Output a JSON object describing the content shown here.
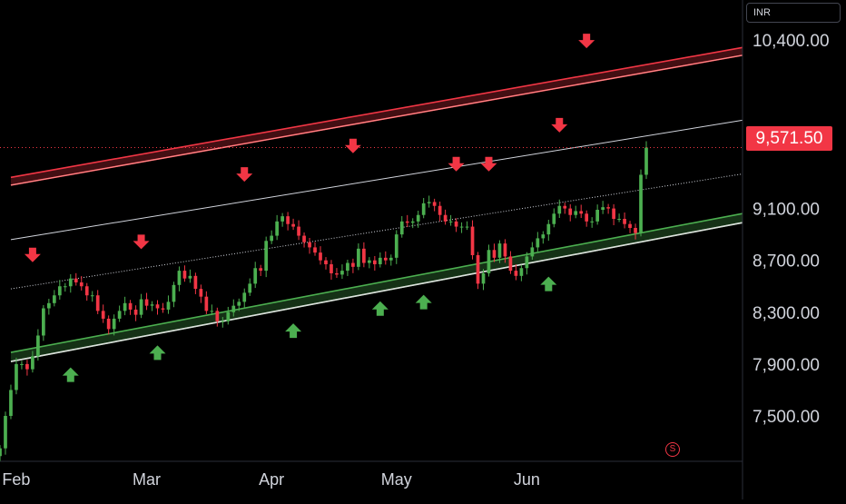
{
  "currency": "INR",
  "last_price_label": "9,571.50",
  "colors": {
    "background": "#000000",
    "up": "#4caf50",
    "down": "#f23645",
    "resistance_band": "#f23645",
    "support_band": "#4caf50",
    "axis_text": "#d1d4dc",
    "channel_line": "#d1d4dc"
  },
  "icons": {
    "session": "session-s-icon",
    "arrow_up": "arrow-up-icon",
    "arrow_down": "arrow-down-icon"
  },
  "chart_data": {
    "type": "candlestick",
    "y_axis": {
      "tick_labels": [
        "10,400.00",
        "9,100.00",
        "8,700.00",
        "8,300.00",
        "7,900.00",
        "7,500.00"
      ],
      "tick_values": [
        10400,
        9100,
        8700,
        8300,
        7900,
        7500
      ],
      "range": [
        7200,
        10650
      ]
    },
    "x_axis": {
      "tick_labels": [
        "Feb",
        "Mar",
        "Apr",
        "May",
        "Jun"
      ],
      "tick_bar_index": [
        3,
        27,
        50,
        73,
        97
      ],
      "bar_count": 120
    },
    "candles_close": [
      7250,
      7500,
      7700,
      7900,
      7900,
      7860,
      7960,
      8120,
      8330,
      8370,
      8430,
      8500,
      8500,
      8560,
      8530,
      8500,
      8430,
      8430,
      8310,
      8250,
      8170,
      8250,
      8310,
      8370,
      8320,
      8280,
      8400,
      8350,
      8360,
      8330,
      8320,
      8380,
      8510,
      8620,
      8560,
      8580,
      8480,
      8420,
      8310,
      8310,
      8230,
      8230,
      8300,
      8350,
      8380,
      8450,
      8520,
      8640,
      8620,
      8850,
      8890,
      9000,
      9040,
      8980,
      8960,
      8890,
      8840,
      8800,
      8760,
      8700,
      8670,
      8600,
      8590,
      8620,
      8680,
      8650,
      8790,
      8680,
      8700,
      8670,
      8720,
      8700,
      8720,
      8900,
      9000,
      8990,
      9000,
      9050,
      9140,
      9150,
      9120,
      9050,
      9000,
      9000,
      8960,
      8960,
      8960,
      8740,
      8520,
      8600,
      8780,
      8720,
      8830,
      8730,
      8620,
      8580,
      8640,
      8730,
      8800,
      8870,
      8900,
      8980,
      9060,
      9120,
      9100,
      9050,
      9080,
      9060,
      9000,
      9000,
      9090,
      9110,
      9100,
      9020,
      9020,
      8980,
      8950,
      8910,
      9360,
      9570
    ],
    "channel": {
      "resistance_band": {
        "start": [
          2,
          9340
        ],
        "end": [
          119,
          10210
        ],
        "width": 60
      },
      "upper_line": {
        "start": [
          2,
          8860
        ],
        "end": [
          119,
          9660
        ]
      },
      "mid_line": {
        "start": [
          2,
          8480
        ],
        "end": [
          119,
          9250
        ]
      },
      "support_band": {
        "start": [
          2,
          7990
        ],
        "end": [
          119,
          8920
        ],
        "width": 70
      }
    },
    "markers_down": [
      [
        6,
        8700
      ],
      [
        26,
        8800
      ],
      [
        45,
        9320
      ],
      [
        65,
        9540
      ],
      [
        84,
        9400
      ],
      [
        90,
        9400
      ],
      [
        103,
        9700
      ],
      [
        108,
        10350
      ]
    ],
    "markers_up": [
      [
        13,
        7860
      ],
      [
        29,
        8030
      ],
      [
        54,
        8200
      ],
      [
        70,
        8370
      ],
      [
        78,
        8420
      ],
      [
        101,
        8560
      ]
    ]
  }
}
